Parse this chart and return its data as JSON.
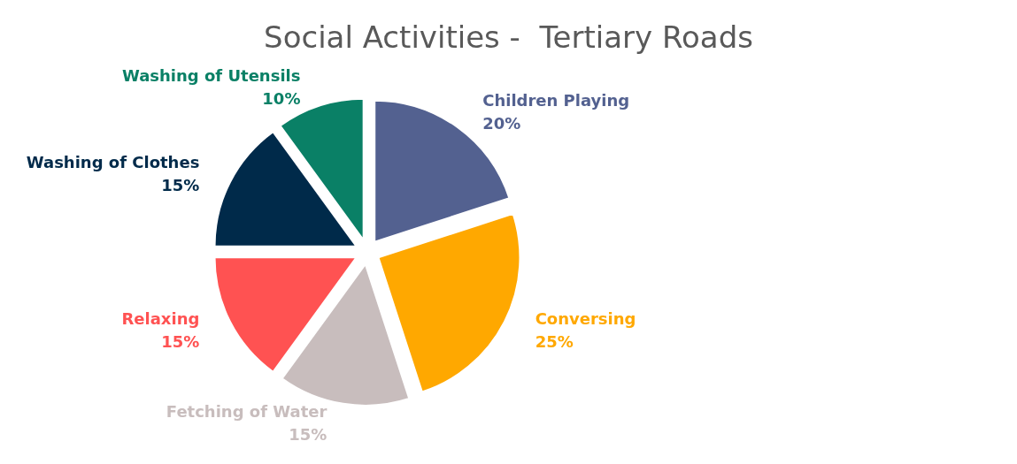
{
  "chart_data": {
    "type": "pie",
    "title": "Social Activities -  Tertiary Roads",
    "categories": [
      "Children Playing",
      "Conversing",
      "Fetching of Water",
      "Relaxing",
      "Washing of Clothes",
      "Washing of Utensils"
    ],
    "values": [
      20,
      25,
      15,
      15,
      15,
      10
    ],
    "value_labels": [
      "20%",
      "25%",
      "15%",
      "15%",
      "15%",
      "10%"
    ],
    "colors": [
      "#536190",
      "#ffa800",
      "#c8bdbd",
      "#ff5252",
      "#002a4a",
      "#0a8066"
    ],
    "legend": false
  }
}
